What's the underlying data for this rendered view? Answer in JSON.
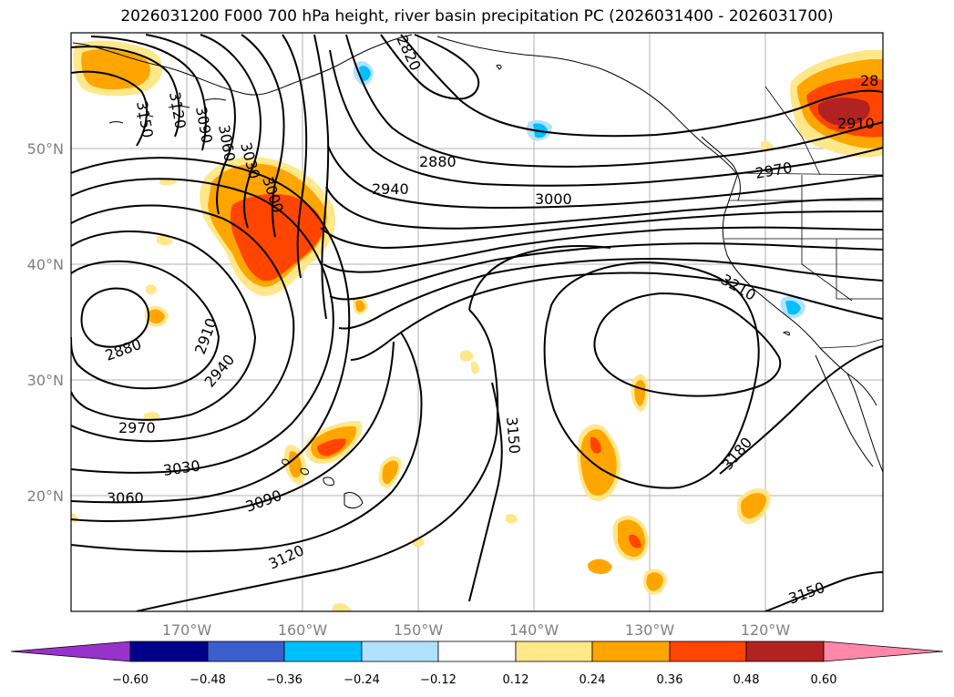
{
  "title": "2026031200 F000 700 hPa height, river basin precipitation PC (2026031400 - 2026031700)",
  "lat_labels": [
    "50°N",
    "40°N",
    "30°N",
    "20°N"
  ],
  "lon_labels": [
    "170°W",
    "160°W",
    "150°W",
    "140°W",
    "130°W",
    "120°W"
  ],
  "contour_labels": {
    "c3150_nw": "3150",
    "c3120_nw": "3120",
    "c3090_nw": "3090",
    "c3060_nw": "3060",
    "c3030_nw": "3030",
    "c3000_nw": "3000",
    "c2820": "2820",
    "c2880_n": "2880",
    "c2940_n": "2940",
    "c3000_n": "3000",
    "c2970_coast": "2970",
    "c2910_ne": "2910",
    "c28_ne": "28",
    "c2880_low": "2880",
    "c2910_low": "2910",
    "c2940_low": "2940",
    "c2970_w": "2970",
    "c3030_w": "3030",
    "c3060_w": "3060",
    "c3090_s": "3090",
    "c3120_s": "3120",
    "c3150_c": "3150",
    "c3180": "3180",
    "c3210": "3210",
    "c3150_se": "3150"
  },
  "colorbar": {
    "ticks": [
      "−0.60",
      "−0.48",
      "−0.36",
      "−0.24",
      "−0.12",
      "0.12",
      "0.24",
      "0.36",
      "0.48",
      "0.60"
    ],
    "colors": [
      "#9932cc",
      "#00008b",
      "#3a5fcd",
      "#00bfff",
      "#b0e2ff",
      "#ffffff",
      "#ffe78a",
      "#ffa500",
      "#ff4500",
      "#b22222",
      "#ff88aa"
    ]
  }
}
